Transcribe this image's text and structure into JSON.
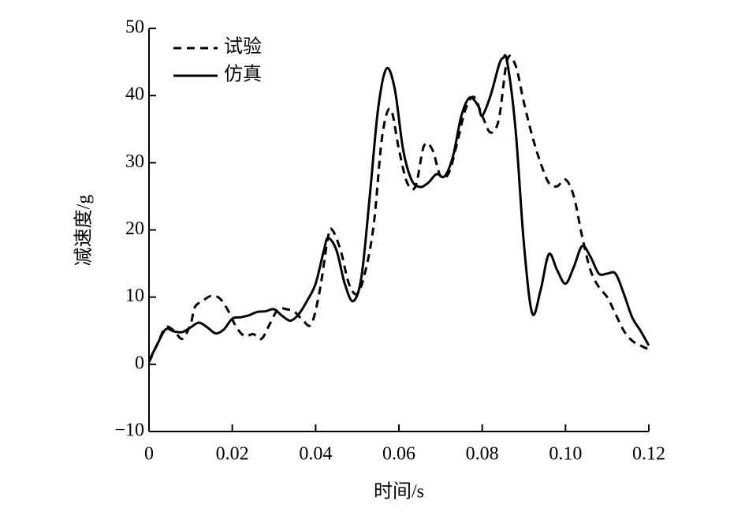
{
  "chart_data": {
    "type": "line",
    "x_label": "时间/s",
    "y_label": "减速度/g",
    "xlim": [
      0,
      0.12
    ],
    "xticks": [
      0,
      0.02,
      0.04,
      0.06,
      0.08,
      {
        "value": 0.1,
        "label": "0.10"
      },
      0.12
    ],
    "ylim": [
      -10,
      50
    ],
    "yticks": [
      {
        "value": -10,
        "label": "−10"
      },
      0,
      10,
      20,
      30,
      40,
      50
    ],
    "legend": "upper left",
    "series": [
      {
        "name": "试验",
        "color": "#000000",
        "dash": true,
        "x": [
          0,
          0.002,
          0.004,
          0.006,
          0.008,
          0.01,
          0.011,
          0.013,
          0.015,
          0.017,
          0.019,
          0.021,
          0.023,
          0.025,
          0.027,
          0.029,
          0.031,
          0.033,
          0.035,
          0.037,
          0.039,
          0.041,
          0.043,
          0.044,
          0.046,
          0.048,
          0.05,
          0.052,
          0.054,
          0.056,
          0.058,
          0.06,
          0.062,
          0.064,
          0.066,
          0.068,
          0.07,
          0.072,
          0.074,
          0.076,
          0.078,
          0.08,
          0.082,
          0.084,
          0.086,
          0.088,
          0.09,
          0.092,
          0.094,
          0.096,
          0.098,
          0.1,
          0.102,
          0.104,
          0.106,
          0.108,
          0.11,
          0.112,
          0.114,
          0.116,
          0.118,
          0.12
        ],
        "values": [
          0.3,
          3,
          5.5,
          5,
          3.8,
          6,
          8.5,
          9.5,
          10.2,
          9.8,
          8,
          5.5,
          4.2,
          4.5,
          3.8,
          6,
          8.2,
          8.2,
          7.8,
          6.5,
          6,
          11,
          19,
          20,
          17,
          12,
          10.5,
          14,
          21,
          34,
          38,
          32,
          27,
          26.5,
          32.5,
          32,
          28,
          28.5,
          33,
          38,
          39.8,
          37,
          34.5,
          36.5,
          45.3,
          44.5,
          39,
          34,
          30,
          27,
          26.5,
          27.5,
          25,
          19,
          14,
          11.5,
          10,
          7.5,
          5,
          3.5,
          2.8,
          2.2
        ]
      },
      {
        "name": "仿真",
        "color": "#000000",
        "dash": false,
        "x": [
          0,
          0.002,
          0.004,
          0.006,
          0.008,
          0.01,
          0.012,
          0.014,
          0.016,
          0.018,
          0.02,
          0.022,
          0.024,
          0.026,
          0.028,
          0.03,
          0.032,
          0.034,
          0.036,
          0.038,
          0.04,
          0.042,
          0.043,
          0.045,
          0.047,
          0.049,
          0.051,
          0.053,
          0.055,
          0.057,
          0.059,
          0.061,
          0.063,
          0.065,
          0.067,
          0.069,
          0.071,
          0.073,
          0.075,
          0.077,
          0.079,
          0.08,
          0.082,
          0.084,
          0.085,
          0.086,
          0.088,
          0.09,
          0.092,
          0.094,
          0.096,
          0.098,
          0.1,
          0.102,
          0.104,
          0.106,
          0.108,
          0.11,
          0.112,
          0.114,
          0.116,
          0.118,
          0.12
        ],
        "values": [
          0.5,
          3,
          5.2,
          4.9,
          4.8,
          5.5,
          6.2,
          5.5,
          4.6,
          5.2,
          6.8,
          7,
          7.3,
          7.8,
          7.9,
          8.2,
          7.2,
          6.5,
          7.5,
          9.5,
          12,
          17,
          18.8,
          17,
          12,
          9.4,
          13,
          25,
          38,
          44,
          41,
          32,
          27.5,
          26.4,
          27,
          28.3,
          28,
          31,
          37,
          39.7,
          38.5,
          37,
          40,
          44.5,
          45.6,
          45,
          35,
          18,
          7.6,
          11,
          16.4,
          14,
          12,
          14.5,
          17.6,
          16,
          13.5,
          13.5,
          13.5,
          10.5,
          7,
          5,
          2.8
        ]
      }
    ]
  }
}
